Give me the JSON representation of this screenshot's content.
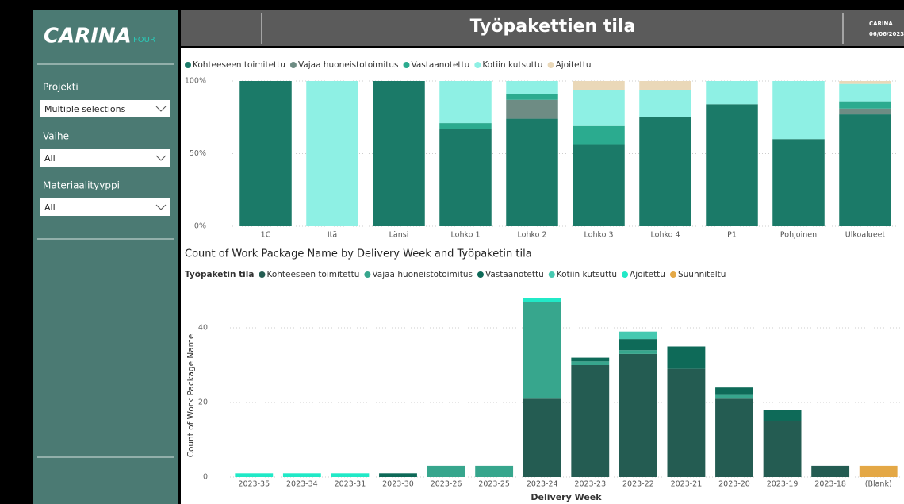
{
  "sidebar": {
    "logo": {
      "name": "CARINA",
      "suffix": "FOUR"
    },
    "filters": [
      {
        "label": "Projekti",
        "value": "Multiple selections"
      },
      {
        "label": "Vaihe",
        "value": "All"
      },
      {
        "label": "Materiaalityyppi",
        "value": "All"
      }
    ]
  },
  "header": {
    "title": "Työpakettien tila",
    "brand": "CARINA",
    "date": "06/06/2023"
  },
  "chart_data": [
    {
      "type": "stacked_bar",
      "categories": [
        "1C",
        "Itä",
        "Länsi",
        "Lohko 1",
        "Lohko 2",
        "Lohko 3",
        "Lohko 4",
        "P1",
        "Pohjoinen",
        "Ulkoalueet"
      ],
      "series": [
        {
          "name": "Kohteeseen toimitettu",
          "color": "#1b7a68",
          "values": [
            100,
            0,
            100,
            67,
            74,
            56,
            75,
            84,
            60,
            77
          ]
        },
        {
          "name": "Vajaa huoneistotoimitus",
          "color": "#6e8c84",
          "values": [
            0,
            0,
            0,
            0,
            13,
            0,
            0,
            0,
            0,
            4
          ]
        },
        {
          "name": "Vastaanotettu",
          "color": "#2bab8f",
          "values": [
            0,
            0,
            0,
            4,
            4,
            13,
            0,
            0,
            0,
            5
          ]
        },
        {
          "name": "Kotiin kutsuttu",
          "color": "#8ef0e4",
          "values": [
            0,
            100,
            0,
            29,
            9,
            25,
            19,
            16,
            40,
            12
          ]
        },
        {
          "name": "Ajoitettu",
          "color": "#ead8b8",
          "values": [
            0,
            0,
            0,
            0,
            0,
            6,
            6,
            0,
            0,
            2
          ]
        }
      ],
      "ylim": [
        0,
        100
      ],
      "yticks": [
        {
          "value": 0,
          "label": "0%"
        },
        {
          "value": 50,
          "label": "50%"
        },
        {
          "value": 100,
          "label": "100%"
        }
      ],
      "grid": true
    },
    {
      "type": "stacked_bar",
      "title": "Count of Work Package Name by Delivery Week and Työpaketin tila",
      "legend_title": "Työpaketin tila",
      "x_label": "Delivery Week",
      "y_label": "Count of Work Package Name",
      "categories": [
        "2023-35",
        "2023-34",
        "2023-31",
        "2023-30",
        "2023-26",
        "2023-25",
        "2023-24",
        "2023-23",
        "2023-22",
        "2023-21",
        "2023-20",
        "2023-19",
        "2023-18",
        "(Blank)"
      ],
      "series": [
        {
          "name": "Kohteeseen toimitettu",
          "color": "#245c52",
          "values": [
            0,
            0,
            0,
            0,
            0,
            0,
            21,
            30,
            33,
            29,
            21,
            15,
            3,
            0
          ]
        },
        {
          "name": "Vajaa huoneistotoimitus",
          "color": "#37a68d",
          "values": [
            0,
            0,
            0,
            0,
            3,
            3,
            26,
            1,
            1,
            0,
            1,
            0,
            0,
            0
          ]
        },
        {
          "name": "Vastaanotettu",
          "color": "#0e6a58",
          "values": [
            0,
            0,
            0,
            1,
            0,
            0,
            0,
            1,
            3,
            6,
            2,
            3,
            0,
            0
          ]
        },
        {
          "name": "Kotiin kutsuttu",
          "color": "#46c9b1",
          "values": [
            0,
            0,
            0,
            0,
            0,
            0,
            0,
            0,
            2,
            0,
            0,
            0,
            0,
            0
          ]
        },
        {
          "name": "Ajoitettu",
          "color": "#21e9c7",
          "values": [
            1,
            1,
            1,
            0,
            0,
            0,
            1,
            0,
            0,
            0,
            0,
            0,
            0,
            0
          ]
        },
        {
          "name": "Suunniteltu",
          "color": "#e4a846",
          "values": [
            0,
            0,
            0,
            0,
            0,
            0,
            0,
            0,
            0,
            0,
            0,
            0,
            0,
            3
          ]
        }
      ],
      "ylim": [
        0,
        50
      ],
      "yticks": [
        0,
        20,
        40
      ],
      "grid": true
    }
  ]
}
